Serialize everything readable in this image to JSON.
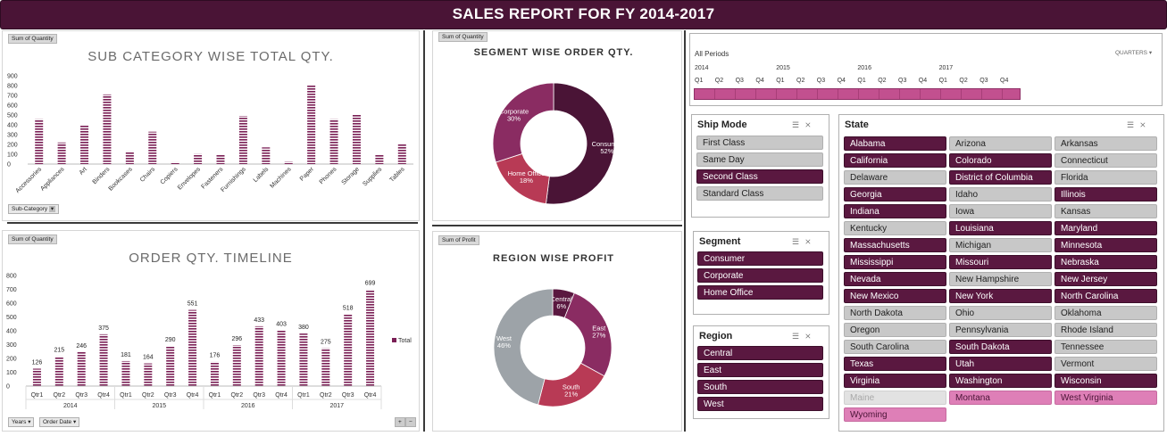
{
  "title": "SALES REPORT FOR FY 2014-2017",
  "subcat_chart": {
    "chip": "Sum of Quantity",
    "dropdown": "Sub-Category",
    "chart_data": {
      "type": "bar",
      "title": "SUB CATEGORY WISE TOTAL QTY.",
      "categories": [
        "Accessories",
        "Appliances",
        "Art",
        "Binders",
        "Bookcases",
        "Chairs",
        "Copiers",
        "Envelopes",
        "Fasteners",
        "Furnishings",
        "Labels",
        "Machines",
        "Paper",
        "Phones",
        "Storage",
        "Supplies",
        "Tables"
      ],
      "values": [
        460,
        220,
        400,
        710,
        130,
        330,
        20,
        105,
        95,
        490,
        170,
        25,
        800,
        460,
        500,
        95,
        200
      ],
      "ylim": [
        0,
        900
      ],
      "yticks": [
        "900",
        "800",
        "700",
        "600",
        "500",
        "400",
        "300",
        "200",
        "100",
        "0"
      ],
      "color": "#7a1f55"
    }
  },
  "timeline_chart": {
    "chip": "Sum of Quantity",
    "legend": "Total",
    "dropdowns": [
      "Years",
      "Order Date"
    ],
    "zoom": [
      "+",
      "−"
    ],
    "chart_data": {
      "type": "bar",
      "title": "ORDER QTY. TIMELINE",
      "categories": [
        "Qtr1",
        "Qtr2",
        "Qtr3",
        "Qtr4",
        "Qtr1",
        "Qtr2",
        "Qtr3",
        "Qtr4",
        "Qtr1",
        "Qtr2",
        "Qtr3",
        "Qtr4",
        "Qtr1",
        "Qtr2",
        "Qtr3",
        "Qtr4"
      ],
      "years": [
        "2014",
        "2015",
        "2016",
        "2017"
      ],
      "values": [
        126,
        215,
        246,
        375,
        181,
        164,
        290,
        551,
        176,
        296,
        433,
        403,
        380,
        275,
        518,
        699
      ],
      "labels": [
        "126",
        "215",
        "246",
        "375",
        "181",
        "164",
        "290",
        "551",
        "176",
        "296",
        "433",
        "403",
        "380",
        "275",
        "518",
        "699"
      ],
      "ylim": [
        0,
        800
      ],
      "yticks": [
        "800",
        "700",
        "600",
        "500",
        "400",
        "300",
        "200",
        "100",
        "0"
      ],
      "color": "#7a1f55"
    }
  },
  "segment_chart": {
    "chip": "Sum of Quantity",
    "chart_data": {
      "type": "pie",
      "title": "SEGMENT WISE ORDER QTY.",
      "slices": [
        {
          "label": "Consumer",
          "pct": "52%",
          "value": 52,
          "color": "#4a1436"
        },
        {
          "label": "Home Office",
          "pct": "18%",
          "value": 18,
          "color": "#b83a55"
        },
        {
          "label": "Corporate",
          "pct": "30%",
          "value": 30,
          "color": "#8a2c62"
        }
      ]
    }
  },
  "region_chart": {
    "chip": "Sum of Profit",
    "chart_data": {
      "type": "pie",
      "title": "REGION WISE PROFIT",
      "slices": [
        {
          "label": "Central",
          "pct": "6%",
          "value": 6,
          "color": "#5a1840"
        },
        {
          "label": "East",
          "pct": "27%",
          "value": 27,
          "color": "#8a2c62"
        },
        {
          "label": "South",
          "pct": "21%",
          "value": 21,
          "color": "#b83a55"
        },
        {
          "label": "West",
          "pct": "46%",
          "value": 46,
          "color": "#9da3a8"
        }
      ]
    }
  },
  "timeline_slicer": {
    "label": "All Periods",
    "level": "QUARTERS",
    "years": [
      "2014",
      "2015",
      "2016",
      "2017"
    ],
    "quarters": [
      "Q1",
      "Q2",
      "Q3",
      "Q4",
      "Q1",
      "Q2",
      "Q3",
      "Q4",
      "Q1",
      "Q2",
      "Q3",
      "Q4",
      "Q1",
      "Q2",
      "Q3",
      "Q4"
    ]
  },
  "ship_mode": {
    "title": "Ship Mode",
    "items": [
      {
        "label": "First Class",
        "state": "unsel"
      },
      {
        "label": "Same Day",
        "state": "unsel"
      },
      {
        "label": "Second Class",
        "state": "sel"
      },
      {
        "label": "Standard Class",
        "state": "unsel"
      }
    ]
  },
  "segment": {
    "title": "Segment",
    "items": [
      {
        "label": "Consumer",
        "state": "sel"
      },
      {
        "label": "Corporate",
        "state": "sel"
      },
      {
        "label": "Home Office",
        "state": "sel"
      }
    ]
  },
  "region": {
    "title": "Region",
    "items": [
      {
        "label": "Central",
        "state": "sel"
      },
      {
        "label": "East",
        "state": "sel"
      },
      {
        "label": "South",
        "state": "sel"
      },
      {
        "label": "West",
        "state": "sel"
      }
    ]
  },
  "state": {
    "title": "State",
    "items": [
      {
        "label": "Alabama",
        "state": "sel"
      },
      {
        "label": "Arizona",
        "state": "unsel"
      },
      {
        "label": "Arkansas",
        "state": "unsel"
      },
      {
        "label": "California",
        "state": "sel"
      },
      {
        "label": "Colorado",
        "state": "sel"
      },
      {
        "label": "Connecticut",
        "state": "unsel"
      },
      {
        "label": "Delaware",
        "state": "unsel"
      },
      {
        "label": "District of Columbia",
        "state": "sel"
      },
      {
        "label": "Florida",
        "state": "unsel"
      },
      {
        "label": "Georgia",
        "state": "sel"
      },
      {
        "label": "Idaho",
        "state": "unsel"
      },
      {
        "label": "Illinois",
        "state": "sel"
      },
      {
        "label": "Indiana",
        "state": "sel"
      },
      {
        "label": "Iowa",
        "state": "unsel"
      },
      {
        "label": "Kansas",
        "state": "unsel"
      },
      {
        "label": "Kentucky",
        "state": "unsel"
      },
      {
        "label": "Louisiana",
        "state": "sel"
      },
      {
        "label": "Maryland",
        "state": "sel"
      },
      {
        "label": "Massachusetts",
        "state": "sel"
      },
      {
        "label": "Michigan",
        "state": "unsel"
      },
      {
        "label": "Minnesota",
        "state": "sel"
      },
      {
        "label": "Mississippi",
        "state": "sel"
      },
      {
        "label": "Missouri",
        "state": "sel"
      },
      {
        "label": "Nebraska",
        "state": "sel"
      },
      {
        "label": "Nevada",
        "state": "sel"
      },
      {
        "label": "New Hampshire",
        "state": "unsel"
      },
      {
        "label": "New Jersey",
        "state": "sel"
      },
      {
        "label": "New Mexico",
        "state": "sel"
      },
      {
        "label": "New York",
        "state": "sel"
      },
      {
        "label": "North Carolina",
        "state": "sel"
      },
      {
        "label": "North Dakota",
        "state": "unsel"
      },
      {
        "label": "Ohio",
        "state": "unsel"
      },
      {
        "label": "Oklahoma",
        "state": "unsel"
      },
      {
        "label": "Oregon",
        "state": "unsel"
      },
      {
        "label": "Pennsylvania",
        "state": "unsel"
      },
      {
        "label": "Rhode Island",
        "state": "unsel"
      },
      {
        "label": "South Carolina",
        "state": "unsel"
      },
      {
        "label": "South Dakota",
        "state": "sel"
      },
      {
        "label": "Tennessee",
        "state": "unsel"
      },
      {
        "label": "Texas",
        "state": "sel"
      },
      {
        "label": "Utah",
        "state": "sel"
      },
      {
        "label": "Vermont",
        "state": "unsel"
      },
      {
        "label": "Virginia",
        "state": "sel"
      },
      {
        "label": "Washington",
        "state": "sel"
      },
      {
        "label": "Wisconsin",
        "state": "sel"
      },
      {
        "label": "Maine",
        "state": "nodata"
      },
      {
        "label": "Montana",
        "state": "pink"
      },
      {
        "label": "West Virginia",
        "state": "pink"
      },
      {
        "label": "Wyoming",
        "state": "pink"
      }
    ]
  }
}
